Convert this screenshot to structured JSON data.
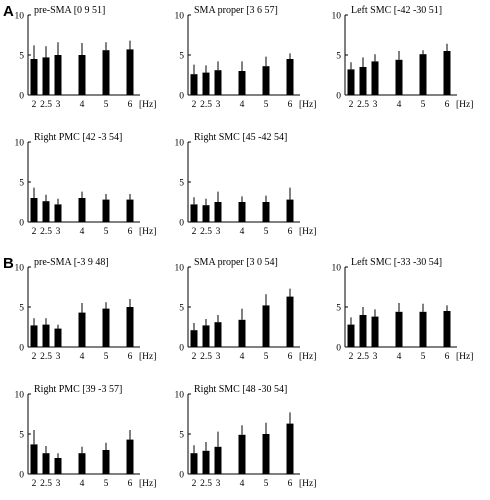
{
  "sections": [
    {
      "letter": "A",
      "panels": [
        {
          "title": "pre-SMA  [0 9 51]",
          "values": [
            4.5,
            4.7,
            5.0,
            5.0,
            5.6,
            5.7
          ],
          "errors": [
            1.7,
            1.4,
            1.6,
            1.5,
            1.0,
            1.1
          ]
        },
        {
          "title": "SMA proper  [3 6 57]",
          "values": [
            2.6,
            2.8,
            3.1,
            3.0,
            3.6,
            4.5
          ],
          "errors": [
            1.2,
            0.9,
            1.1,
            1.2,
            1.2,
            0.7
          ]
        },
        {
          "title": "Left SMC  [-42 -30 51]",
          "values": [
            3.2,
            3.5,
            4.2,
            4.4,
            5.1,
            5.5
          ],
          "errors": [
            0.9,
            1.2,
            0.9,
            1.1,
            0.5,
            0.9
          ]
        },
        {
          "title": "Right PMC  [42 -3 54]",
          "values": [
            3.0,
            2.6,
            2.2,
            3.0,
            2.8,
            2.8
          ],
          "errors": [
            1.3,
            0.8,
            0.7,
            0.8,
            0.7,
            0.7
          ]
        },
        {
          "title": "Right SMC  [45 -42 54]",
          "values": [
            2.2,
            2.1,
            2.5,
            2.5,
            2.5,
            2.8
          ],
          "errors": [
            0.9,
            0.8,
            1.3,
            0.7,
            0.8,
            1.5
          ]
        }
      ]
    },
    {
      "letter": "B",
      "panels": [
        {
          "title": "pre-SMA  [-3 9 48]",
          "values": [
            2.7,
            2.8,
            2.3,
            4.3,
            4.8,
            5.0
          ],
          "errors": [
            0.9,
            0.8,
            0.5,
            1.2,
            0.8,
            1.0
          ]
        },
        {
          "title": "SMA proper  [3 0 54]",
          "values": [
            2.1,
            2.7,
            3.1,
            3.4,
            5.2,
            6.3
          ],
          "errors": [
            0.9,
            0.8,
            0.9,
            1.4,
            1.4,
            1.0
          ]
        },
        {
          "title": "Left SMC  [-33 -30 54]",
          "values": [
            2.8,
            4.0,
            3.8,
            4.4,
            4.4,
            4.5
          ],
          "errors": [
            0.9,
            1.0,
            0.9,
            1.1,
            1.0,
            0.7
          ]
        },
        {
          "title": "Right PMC  [39 -3 57]",
          "values": [
            3.7,
            2.6,
            2.0,
            2.6,
            3.0,
            4.3
          ],
          "errors": [
            1.8,
            0.9,
            0.6,
            0.8,
            0.9,
            1.2
          ]
        },
        {
          "title": "Right SMC  [48 -30 54]",
          "values": [
            2.6,
            2.9,
            3.4,
            4.9,
            5.0,
            6.3
          ],
          "errors": [
            1.0,
            1.1,
            1.9,
            1.2,
            1.4,
            1.4
          ]
        }
      ]
    }
  ],
  "chart_data": {
    "type": "bar",
    "categories": [
      "2",
      "2.5",
      "3",
      "4",
      "5",
      "6"
    ],
    "x": [
      2,
      2.5,
      3,
      4,
      5,
      6
    ],
    "xunit": "[Hz]",
    "ylim": [
      0,
      10
    ],
    "yticks": [
      0,
      5,
      10
    ],
    "grid": false,
    "error_bars": true
  }
}
